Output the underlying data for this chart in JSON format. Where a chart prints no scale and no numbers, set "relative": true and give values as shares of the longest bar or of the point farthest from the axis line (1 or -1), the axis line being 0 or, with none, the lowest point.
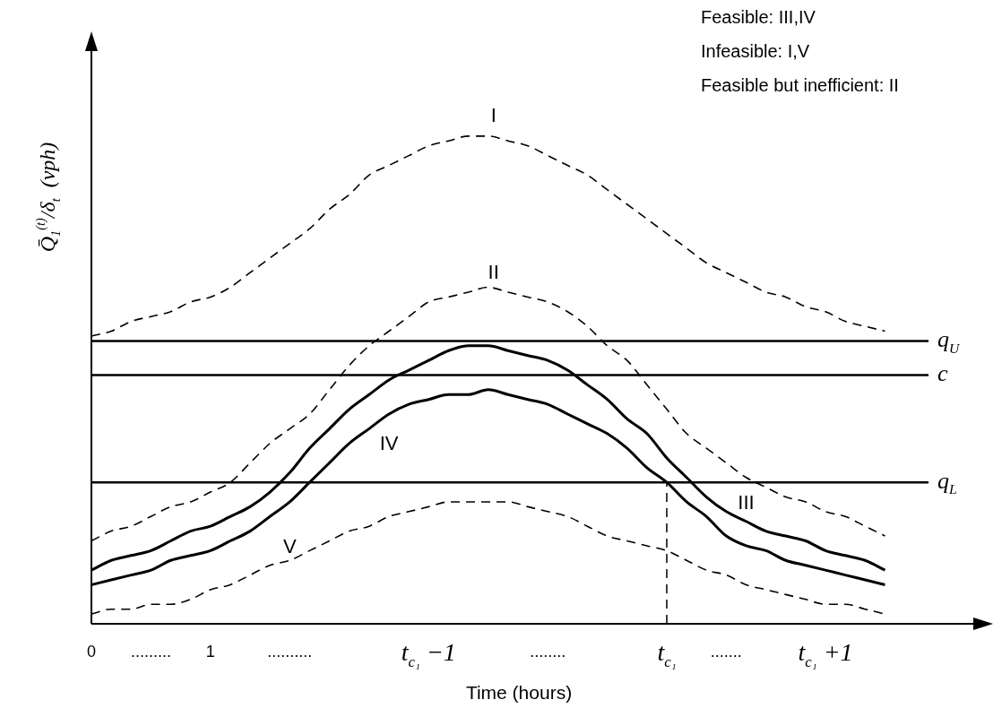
{
  "chart_data": {
    "type": "line",
    "relative": true,
    "xlabel": "Time (hours)",
    "ylabel": "Q̄$_{1}$$^{(t)}$/δ$_{t}$  (vph)",
    "marker": "none",
    "categories": [
      "0",
      null,
      null,
      ".........",
      null,
      null,
      "1",
      null,
      null,
      null,
      "..........",
      null,
      null,
      null,
      null,
      null,
      null,
      "t$_{c₁}$ −1",
      null,
      null,
      null,
      null,
      null,
      "........",
      null,
      null,
      null,
      null,
      null,
      "t$_{c₁}$",
      null,
      null,
      ".......",
      null,
      null,
      null,
      null,
      "t$_{c₁}$ +1",
      null,
      null,
      null,
      null,
      null,
      null,
      null
    ],
    "series": [
      {
        "name": "I",
        "color": "#000000",
        "line_style": "dashed",
        "values": [
          0.59,
          0.6,
          0.62,
          0.63,
          0.64,
          0.66,
          0.67,
          0.69,
          0.72,
          0.75,
          0.78,
          0.81,
          0.85,
          0.88,
          0.92,
          0.94,
          0.96,
          0.98,
          0.99,
          1.0,
          1.0,
          0.99,
          0.98,
          0.96,
          0.94,
          0.92,
          0.89,
          0.86,
          0.83,
          0.8,
          0.77,
          0.74,
          0.72,
          0.7,
          0.68,
          0.67,
          0.65,
          0.64,
          0.62,
          0.61,
          0.6,
          null,
          null,
          null,
          null
        ]
      },
      {
        "name": "II",
        "color": "#000000",
        "line_style": "dashed",
        "values": [
          0.17,
          0.19,
          0.2,
          0.22,
          0.24,
          0.25,
          0.27,
          0.29,
          0.33,
          0.37,
          0.4,
          0.43,
          0.48,
          0.53,
          0.57,
          0.6,
          0.63,
          0.66,
          0.67,
          0.68,
          0.69,
          0.68,
          0.67,
          0.66,
          0.64,
          0.61,
          0.57,
          0.54,
          0.49,
          0.44,
          0.39,
          0.36,
          0.33,
          0.3,
          0.28,
          0.26,
          0.25,
          0.23,
          0.22,
          0.2,
          0.18,
          null,
          null,
          null,
          null
        ]
      },
      {
        "name": "III",
        "color": "#000000",
        "line_style": "solid",
        "values": [
          0.11,
          0.13,
          0.14,
          0.15,
          0.17,
          0.19,
          0.2,
          0.22,
          0.24,
          0.27,
          0.31,
          0.36,
          0.4,
          0.44,
          0.47,
          0.5,
          0.52,
          0.54,
          0.56,
          0.57,
          0.57,
          0.56,
          0.55,
          0.54,
          0.52,
          0.49,
          0.46,
          0.42,
          0.39,
          0.34,
          0.3,
          0.26,
          0.23,
          0.21,
          0.19,
          0.18,
          0.17,
          0.15,
          0.14,
          0.13,
          0.11,
          null,
          null,
          null,
          null
        ]
      },
      {
        "name": "IV",
        "color": "#000000",
        "line_style": "solid",
        "values": [
          0.08,
          0.09,
          0.1,
          0.11,
          0.13,
          0.14,
          0.15,
          0.17,
          0.19,
          0.22,
          0.25,
          0.29,
          0.33,
          0.37,
          0.4,
          0.43,
          0.45,
          0.46,
          0.47,
          0.47,
          0.48,
          0.47,
          0.46,
          0.45,
          0.43,
          0.41,
          0.39,
          0.36,
          0.32,
          0.29,
          0.25,
          0.22,
          0.18,
          0.16,
          0.15,
          0.13,
          0.12,
          0.11,
          0.1,
          0.09,
          0.08,
          null,
          null,
          null,
          null
        ]
      },
      {
        "name": "V",
        "color": "#000000",
        "line_style": "dashed",
        "values": [
          0.02,
          0.03,
          0.03,
          0.04,
          0.04,
          0.05,
          0.07,
          0.08,
          0.1,
          0.12,
          0.13,
          0.15,
          0.17,
          0.19,
          0.2,
          0.22,
          0.23,
          0.24,
          0.25,
          0.25,
          0.25,
          0.25,
          0.24,
          0.23,
          0.22,
          0.2,
          0.18,
          0.17,
          0.16,
          0.15,
          0.13,
          0.11,
          0.1,
          0.08,
          0.07,
          0.06,
          0.05,
          0.04,
          0.04,
          0.03,
          0.02,
          null,
          null,
          null,
          null
        ]
      }
    ],
    "ref_lines": [
      {
        "axis": "y",
        "value": 0.58,
        "label": "q$_{U}$",
        "color": "#000000",
        "line_style": "solid"
      },
      {
        "axis": "y",
        "value": 0.51,
        "label": "c",
        "color": "#000000",
        "line_style": "solid"
      },
      {
        "axis": "y",
        "value": 0.29,
        "label": "q$_{L}$",
        "color": "#000000",
        "line_style": "solid"
      },
      {
        "axis": "x",
        "value": "t$_{c₁}$",
        "color": "#000000",
        "line_style": "dashed"
      }
    ],
    "annotations": [
      "Feasible: III,IV",
      "Infeasible: I,V",
      "Feasible but inefficient: II"
    ]
  }
}
